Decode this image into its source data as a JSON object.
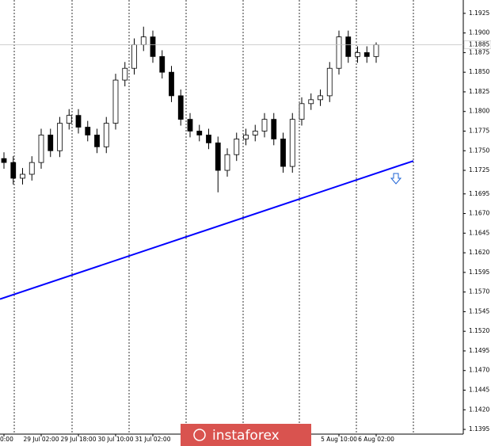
{
  "chart_data": {
    "type": "candlestick",
    "categories": [
      "0:00",
      null,
      null,
      null,
      "29 Jul 02:00",
      null,
      null,
      null,
      "29 Jul 18:00",
      null,
      null,
      null,
      "30 Jul 10:00",
      null,
      null,
      null,
      "31 Jul 02:00",
      null,
      null,
      null,
      null,
      null,
      null,
      null,
      null,
      null,
      null,
      null,
      null,
      null,
      null,
      null,
      null,
      null,
      null,
      null,
      "5 Aug 10:00",
      null,
      null,
      null,
      "6 Aug 02:00"
    ],
    "open": [
      1.174,
      1.1735,
      1.1715,
      1.172,
      1.1735,
      1.177,
      1.175,
      1.1785,
      1.1795,
      1.178,
      1.177,
      1.1755,
      1.1785,
      1.184,
      1.1855,
      1.1885,
      1.1895,
      1.187,
      1.185,
      1.182,
      1.179,
      1.1775,
      1.177,
      1.176,
      1.1725,
      1.1745,
      1.1765,
      1.177,
      1.1775,
      1.179,
      1.1765,
      1.173,
      1.179,
      1.181,
      1.1815,
      1.182,
      1.1855,
      1.1895,
      1.187,
      1.1875,
      1.187
    ],
    "high": [
      1.1748,
      1.1743,
      1.1728,
      1.1743,
      1.1778,
      1.1778,
      1.1793,
      1.1803,
      1.1803,
      1.1788,
      1.1778,
      1.1793,
      1.1848,
      1.1863,
      1.1893,
      1.1908,
      1.1903,
      1.1878,
      1.1858,
      1.1828,
      1.1798,
      1.1783,
      1.1778,
      1.1768,
      1.1753,
      1.1773,
      1.1778,
      1.1783,
      1.1798,
      1.1798,
      1.1773,
      1.1798,
      1.1818,
      1.1823,
      1.1828,
      1.1863,
      1.1903,
      1.1903,
      1.1883,
      1.1883,
      1.1888
    ],
    "low": [
      1.1727,
      1.1707,
      1.1707,
      1.1712,
      1.1727,
      1.1742,
      1.1742,
      1.1777,
      1.1772,
      1.1762,
      1.1747,
      1.1747,
      1.1777,
      1.1832,
      1.1847,
      1.1877,
      1.1862,
      1.1842,
      1.1812,
      1.1782,
      1.1767,
      1.1762,
      1.1752,
      1.1697,
      1.1717,
      1.1737,
      1.1757,
      1.1762,
      1.1767,
      1.1757,
      1.1722,
      1.1722,
      1.1782,
      1.1802,
      1.1807,
      1.1812,
      1.1847,
      1.1862,
      1.1862,
      1.1862,
      1.1862
    ],
    "close": [
      1.1735,
      1.1715,
      1.172,
      1.1735,
      1.177,
      1.175,
      1.1785,
      1.1795,
      1.178,
      1.177,
      1.1755,
      1.1785,
      1.184,
      1.1855,
      1.1885,
      1.1895,
      1.187,
      1.185,
      1.182,
      1.179,
      1.1775,
      1.177,
      1.176,
      1.1725,
      1.1745,
      1.1765,
      1.177,
      1.1775,
      1.179,
      1.1765,
      1.173,
      1.179,
      1.181,
      1.1815,
      1.182,
      1.1855,
      1.1895,
      1.187,
      1.1875,
      1.187,
      1.1885
    ],
    "ylim": [
      1.1389,
      1.1942
    ],
    "yticks": [
      {
        "value": 1.1925,
        "label": "1.1925"
      },
      {
        "value": 1.19,
        "label": "1.1900"
      },
      {
        "value": 1.1875,
        "label": "1.1875"
      },
      {
        "value": 1.185,
        "label": "1.1850"
      },
      {
        "value": 1.1825,
        "label": "1.1825"
      },
      {
        "value": 1.18,
        "label": "1.1800"
      },
      {
        "value": 1.1775,
        "label": "1.1775"
      },
      {
        "value": 1.175,
        "label": "1.1750"
      },
      {
        "value": 1.1725,
        "label": "1.1725"
      },
      {
        "value": 1.1695,
        "label": "1.1695"
      },
      {
        "value": 1.167,
        "label": "1.1670"
      },
      {
        "value": 1.1645,
        "label": "1.1645"
      },
      {
        "value": 1.162,
        "label": "1.1620"
      },
      {
        "value": 1.1595,
        "label": "1.1595"
      },
      {
        "value": 1.157,
        "label": "1.1570"
      },
      {
        "value": 1.1545,
        "label": "1.1545"
      },
      {
        "value": 1.152,
        "label": "1.1520"
      },
      {
        "value": 1.1495,
        "label": "1.1495"
      },
      {
        "value": 1.147,
        "label": "1.1470"
      },
      {
        "value": 1.1445,
        "label": "1.1445"
      },
      {
        "value": 1.142,
        "label": "1.1420"
      },
      {
        "value": 1.1395,
        "label": "1.1395"
      }
    ],
    "current_price": {
      "value": 1.1885,
      "label": "1.1885"
    },
    "trend_line": {
      "values": [
        1.1561,
        1.1737
      ],
      "color": "#0000ff"
    },
    "watermark": "instaforex"
  }
}
